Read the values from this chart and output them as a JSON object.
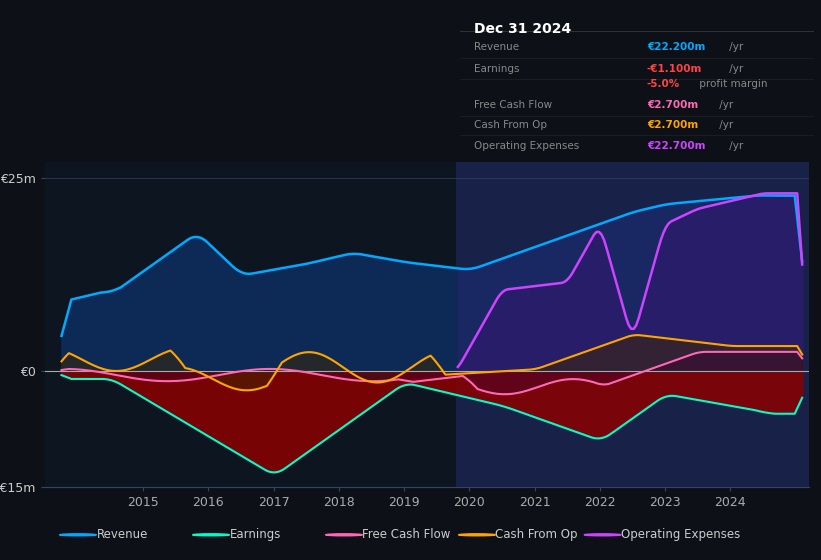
{
  "bg_color": "#0d1117",
  "plot_bg_color": "#0d1520",
  "ylim": [
    -15000000,
    27000000
  ],
  "yticks": [
    -15000000,
    0,
    25000000
  ],
  "ytick_labels": [
    "-€15m",
    "€0",
    "€25m"
  ],
  "xmin": 2013.5,
  "xmax": 2025.2,
  "xticks": [
    2015,
    2016,
    2017,
    2018,
    2019,
    2020,
    2021,
    2022,
    2023,
    2024
  ],
  "highlight_x_start": 2019.8,
  "highlight_x_end": 2025.2,
  "legend_items": [
    {
      "label": "Revenue",
      "color": "#00aaff"
    },
    {
      "label": "Earnings",
      "color": "#00ffcc"
    },
    {
      "label": "Free Cash Flow",
      "color": "#ff69b4"
    },
    {
      "label": "Cash From Op",
      "color": "#ffa500"
    },
    {
      "label": "Operating Expenses",
      "color": "#cc44ff"
    }
  ],
  "colors": {
    "revenue": "#00aaff",
    "earnings": "#00ffcc",
    "cashflow": "#ff69b4",
    "cashfromop": "#ffa500",
    "opex": "#cc44ff"
  },
  "info_title": "Dec 31 2024",
  "info_rows": [
    {
      "label": "Revenue",
      "value": "€22.200m",
      "suffix": " /yr",
      "value_color": "#00aaff"
    },
    {
      "label": "Earnings",
      "value": "-€1.100m",
      "suffix": " /yr",
      "value_color": "#ff4444"
    },
    {
      "label": "",
      "value": "-5.0%",
      "suffix": " profit margin",
      "value_color": "#ff4444"
    },
    {
      "label": "Free Cash Flow",
      "value": "€2.700m",
      "suffix": " /yr",
      "value_color": "#ff69b4"
    },
    {
      "label": "Cash From Op",
      "value": "€2.700m",
      "suffix": " /yr",
      "value_color": "#ffa500"
    },
    {
      "label": "Operating Expenses",
      "value": "€22.700m",
      "suffix": " /yr",
      "value_color": "#cc44ff"
    }
  ]
}
